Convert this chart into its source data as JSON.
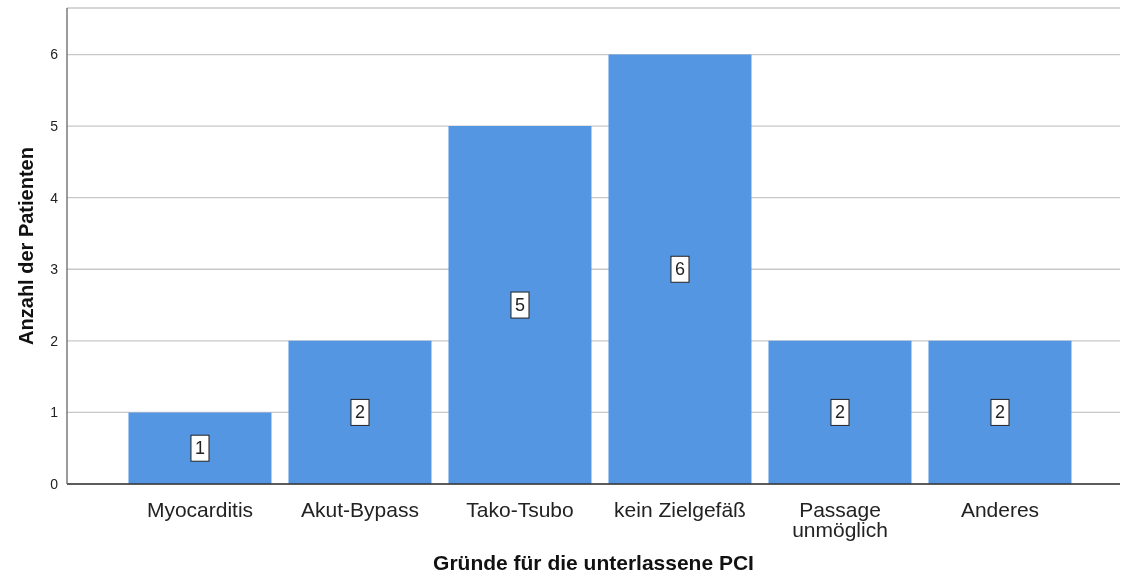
{
  "chart_data": {
    "type": "bar",
    "xlabel": "Gründe für die unterlassene PCI",
    "ylabel": "Anzahl der Patienten",
    "categories": [
      "Myocarditis",
      "Akut-Bypass",
      "Tako-Tsubo",
      "kein Zielgefäß",
      "Passage unmöglich",
      "Anderes"
    ],
    "values": [
      1,
      2,
      5,
      6,
      2,
      2
    ],
    "color": "#5596e3",
    "ylim": [
      0,
      6.65
    ],
    "yticks": [
      0,
      1,
      2,
      3,
      4,
      5,
      6
    ],
    "grid": "y",
    "data_labels": true
  }
}
